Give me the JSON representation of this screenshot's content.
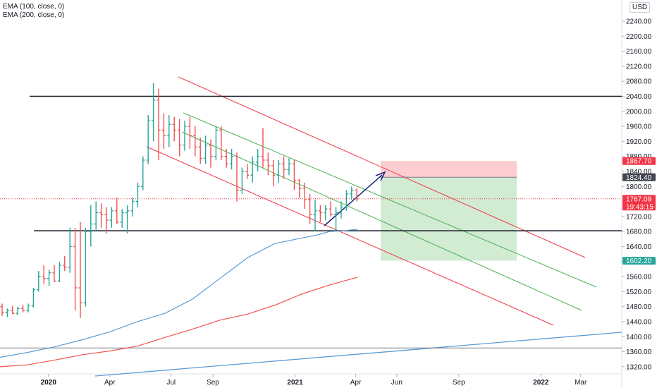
{
  "legend": {
    "ema100": "EMA (100, close, 0)",
    "ema200": "EMA (200, close, 0)"
  },
  "currency": "USD",
  "price_tags": [
    {
      "label": "1867.70",
      "value": 1867.7,
      "color": "#f23645"
    },
    {
      "label": "1824.40",
      "value": 1824.4,
      "color": "#434651"
    },
    {
      "label": "1767.09",
      "sub": "19:43:15",
      "value": 1767.09,
      "color": "#f23645"
    },
    {
      "label": "1602.20",
      "value": 1602.2,
      "color": "#26a69a"
    }
  ],
  "chart_data": {
    "type": "bar",
    "instrument_style": "OHLC weekly bars",
    "yaxis": {
      "range": [
        1300,
        2250
      ],
      "ticks": [
        "1320.00",
        "1360.00",
        "1400.00",
        "1440.00",
        "1480.00",
        "1520.00",
        "1560.00",
        "1600.00",
        "1640.00",
        "1680.00",
        "1720.00",
        "1760.00",
        "1800.00",
        "1840.00",
        "1880.00",
        "1920.00",
        "1960.00",
        "2000.00",
        "2040.00",
        "2080.00",
        "2120.00",
        "2160.00",
        "2200.00",
        "2240.00"
      ],
      "unit": "USD"
    },
    "xaxis": {
      "range": [
        "2019-10-21",
        "2022-05-01"
      ],
      "ticks": [
        {
          "label": "2020",
          "date": "2020-01-01",
          "bold": true
        },
        {
          "label": "Apr",
          "date": "2020-04-01"
        },
        {
          "label": "Jul",
          "date": "2020-07-01"
        },
        {
          "label": "Sep",
          "date": "2020-09-01"
        },
        {
          "label": "2021",
          "date": "2021-01-01",
          "bold": true
        },
        {
          "label": "Apr",
          "date": "2021-04-01"
        },
        {
          "label": "Jun",
          "date": "2021-06-01"
        },
        {
          "label": "Sep",
          "date": "2021-09-01"
        },
        {
          "label": "2022",
          "date": "2022-01-01",
          "bold": true
        },
        {
          "label": "Mar",
          "date": "2022-03-01"
        }
      ]
    },
    "bars": [
      {
        "o": 1480,
        "h": 1488,
        "l": 1455,
        "c": 1465
      },
      {
        "o": 1465,
        "h": 1475,
        "l": 1452,
        "c": 1470
      },
      {
        "o": 1470,
        "h": 1482,
        "l": 1460,
        "c": 1462
      },
      {
        "o": 1462,
        "h": 1480,
        "l": 1458,
        "c": 1475
      },
      {
        "o": 1475,
        "h": 1485,
        "l": 1465,
        "c": 1470
      },
      {
        "o": 1470,
        "h": 1488,
        "l": 1465,
        "c": 1482
      },
      {
        "o": 1482,
        "h": 1530,
        "l": 1478,
        "c": 1525
      },
      {
        "o": 1525,
        "h": 1575,
        "l": 1520,
        "c": 1560
      },
      {
        "o": 1560,
        "h": 1590,
        "l": 1540,
        "c": 1555
      },
      {
        "o": 1555,
        "h": 1578,
        "l": 1535,
        "c": 1570
      },
      {
        "o": 1570,
        "h": 1590,
        "l": 1545,
        "c": 1548
      },
      {
        "o": 1548,
        "h": 1600,
        "l": 1545,
        "c": 1590
      },
      {
        "o": 1590,
        "h": 1615,
        "l": 1575,
        "c": 1585
      },
      {
        "o": 1585,
        "h": 1690,
        "l": 1570,
        "c": 1640
      },
      {
        "o": 1640,
        "h": 1690,
        "l": 1470,
        "c": 1530
      },
      {
        "o": 1530,
        "h": 1705,
        "l": 1450,
        "c": 1490
      },
      {
        "o": 1490,
        "h": 1690,
        "l": 1480,
        "c": 1680
      },
      {
        "o": 1680,
        "h": 1750,
        "l": 1640,
        "c": 1700
      },
      {
        "o": 1700,
        "h": 1760,
        "l": 1685,
        "c": 1730
      },
      {
        "o": 1730,
        "h": 1755,
        "l": 1690,
        "c": 1725
      },
      {
        "o": 1725,
        "h": 1745,
        "l": 1675,
        "c": 1710
      },
      {
        "o": 1710,
        "h": 1745,
        "l": 1690,
        "c": 1735
      },
      {
        "o": 1735,
        "h": 1770,
        "l": 1700,
        "c": 1705
      },
      {
        "o": 1705,
        "h": 1740,
        "l": 1690,
        "c": 1730
      },
      {
        "o": 1730,
        "h": 1750,
        "l": 1675,
        "c": 1735
      },
      {
        "o": 1735,
        "h": 1770,
        "l": 1720,
        "c": 1760
      },
      {
        "o": 1760,
        "h": 1810,
        "l": 1745,
        "c": 1800
      },
      {
        "o": 1800,
        "h": 1880,
        "l": 1790,
        "c": 1870
      },
      {
        "o": 1870,
        "h": 1990,
        "l": 1860,
        "c": 1975
      },
      {
        "o": 1975,
        "h": 2075,
        "l": 1920,
        "c": 2030
      },
      {
        "o": 2030,
        "h": 2060,
        "l": 1870,
        "c": 1950
      },
      {
        "o": 1950,
        "h": 1995,
        "l": 1900,
        "c": 1935
      },
      {
        "o": 1935,
        "h": 1990,
        "l": 1905,
        "c": 1965
      },
      {
        "o": 1965,
        "h": 1985,
        "l": 1920,
        "c": 1950
      },
      {
        "o": 1950,
        "h": 1980,
        "l": 1880,
        "c": 1910
      },
      {
        "o": 1910,
        "h": 1975,
        "l": 1895,
        "c": 1960
      },
      {
        "o": 1960,
        "h": 1985,
        "l": 1900,
        "c": 1935
      },
      {
        "o": 1935,
        "h": 1960,
        "l": 1880,
        "c": 1905
      },
      {
        "o": 1905,
        "h": 1930,
        "l": 1860,
        "c": 1875
      },
      {
        "o": 1875,
        "h": 1935,
        "l": 1860,
        "c": 1910
      },
      {
        "o": 1910,
        "h": 1925,
        "l": 1850,
        "c": 1880
      },
      {
        "o": 1880,
        "h": 1960,
        "l": 1870,
        "c": 1950
      },
      {
        "o": 1950,
        "h": 1960,
        "l": 1870,
        "c": 1880
      },
      {
        "o": 1880,
        "h": 1900,
        "l": 1850,
        "c": 1860
      },
      {
        "o": 1860,
        "h": 1900,
        "l": 1845,
        "c": 1880
      },
      {
        "o": 1880,
        "h": 1890,
        "l": 1760,
        "c": 1790
      },
      {
        "o": 1790,
        "h": 1850,
        "l": 1780,
        "c": 1840
      },
      {
        "o": 1840,
        "h": 1860,
        "l": 1820,
        "c": 1830
      },
      {
        "o": 1830,
        "h": 1880,
        "l": 1810,
        "c": 1865
      },
      {
        "o": 1865,
        "h": 1900,
        "l": 1840,
        "c": 1880
      },
      {
        "o": 1880,
        "h": 1955,
        "l": 1850,
        "c": 1870
      },
      {
        "o": 1870,
        "h": 1890,
        "l": 1830,
        "c": 1855
      },
      {
        "o": 1855,
        "h": 1870,
        "l": 1800,
        "c": 1830
      },
      {
        "o": 1830,
        "h": 1870,
        "l": 1810,
        "c": 1860
      },
      {
        "o": 1860,
        "h": 1880,
        "l": 1820,
        "c": 1845
      },
      {
        "o": 1845,
        "h": 1875,
        "l": 1830,
        "c": 1860
      },
      {
        "o": 1860,
        "h": 1870,
        "l": 1790,
        "c": 1815
      },
      {
        "o": 1815,
        "h": 1820,
        "l": 1770,
        "c": 1795
      },
      {
        "o": 1795,
        "h": 1810,
        "l": 1740,
        "c": 1765
      },
      {
        "o": 1765,
        "h": 1780,
        "l": 1700,
        "c": 1725
      },
      {
        "o": 1725,
        "h": 1765,
        "l": 1680,
        "c": 1735
      },
      {
        "o": 1735,
        "h": 1750,
        "l": 1705,
        "c": 1730
      },
      {
        "o": 1730,
        "h": 1750,
        "l": 1710,
        "c": 1740
      },
      {
        "o": 1740,
        "h": 1760,
        "l": 1720,
        "c": 1725
      },
      {
        "o": 1725,
        "h": 1745,
        "l": 1680,
        "c": 1730
      },
      {
        "o": 1730,
        "h": 1760,
        "l": 1715,
        "c": 1745
      },
      {
        "o": 1745,
        "h": 1790,
        "l": 1735,
        "c": 1780
      },
      {
        "o": 1780,
        "h": 1800,
        "l": 1765,
        "c": 1790
      },
      {
        "o": 1790,
        "h": 1795,
        "l": 1760,
        "c": 1767
      }
    ],
    "ema100": [
      [
        0,
        1345
      ],
      [
        10,
        1358
      ],
      [
        20,
        1373
      ],
      [
        30,
        1392
      ],
      [
        40,
        1413
      ],
      [
        50,
        1440
      ],
      [
        60,
        1462
      ],
      [
        70,
        1500
      ],
      [
        80,
        1555
      ],
      [
        90,
        1610
      ],
      [
        100,
        1648
      ],
      [
        110,
        1663
      ],
      [
        115,
        1670
      ],
      [
        120,
        1680
      ],
      [
        125,
        1682
      ],
      [
        130,
        1686
      ]
    ],
    "ema200": [
      [
        0,
        1320
      ],
      [
        10,
        1325
      ],
      [
        20,
        1338
      ],
      [
        30,
        1352
      ],
      [
        40,
        1362
      ],
      [
        50,
        1375
      ],
      [
        60,
        1398
      ],
      [
        70,
        1420
      ],
      [
        80,
        1444
      ],
      [
        90,
        1460
      ],
      [
        100,
        1484
      ],
      [
        110,
        1514
      ],
      [
        120,
        1538
      ],
      [
        130,
        1558
      ]
    ],
    "hlines": [
      {
        "value": 2040,
        "color": "#131722"
      },
      {
        "value": 1682,
        "color": "#131722"
      },
      {
        "value": 1370,
        "color": "#787b86"
      }
    ]
  }
}
